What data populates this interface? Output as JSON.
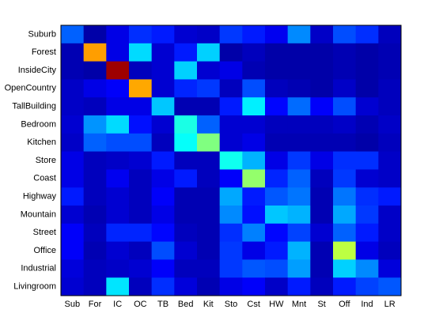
{
  "chart_data": {
    "type": "heatmap",
    "colormap": "jet",
    "clim": [
      0,
      1
    ],
    "x": [
      "Sub",
      "For",
      "IC",
      "OC",
      "TB",
      "Bed",
      "Kit",
      "Sto",
      "Cst",
      "HW",
      "Mnt",
      "St",
      "Off",
      "Ind",
      "LR"
    ],
    "y": [
      "Suburb",
      "Forest",
      "InsideCity",
      "OpenCountry",
      "TallBuilding",
      "Bedroom",
      "Kitchen",
      "Store",
      "Coast",
      "Highway",
      "Mountain",
      "Street",
      "Office",
      "Industrial",
      "Livingroom"
    ],
    "values": [
      [
        0.22,
        0.04,
        0.1,
        0.17,
        0.15,
        0.08,
        0.07,
        0.18,
        0.15,
        0.11,
        0.26,
        0.07,
        0.2,
        0.17,
        0.06
      ],
      [
        0.05,
        0.72,
        0.1,
        0.34,
        0.08,
        0.15,
        0.33,
        0.04,
        0.06,
        0.04,
        0.04,
        0.04,
        0.05,
        0.04,
        0.05
      ],
      [
        0.05,
        0.04,
        0.97,
        0.06,
        0.08,
        0.33,
        0.08,
        0.1,
        0.05,
        0.04,
        0.04,
        0.04,
        0.05,
        0.04,
        0.05
      ],
      [
        0.07,
        0.1,
        0.12,
        0.71,
        0.08,
        0.16,
        0.18,
        0.06,
        0.2,
        0.06,
        0.05,
        0.04,
        0.07,
        0.04,
        0.06
      ],
      [
        0.07,
        0.06,
        0.1,
        0.1,
        0.32,
        0.05,
        0.05,
        0.15,
        0.36,
        0.13,
        0.23,
        0.12,
        0.2,
        0.08,
        0.06
      ],
      [
        0.08,
        0.27,
        0.34,
        0.14,
        0.08,
        0.4,
        0.22,
        0.08,
        0.08,
        0.06,
        0.06,
        0.06,
        0.07,
        0.05,
        0.07
      ],
      [
        0.07,
        0.22,
        0.2,
        0.2,
        0.06,
        0.38,
        0.5,
        0.08,
        0.1,
        0.05,
        0.05,
        0.05,
        0.05,
        0.04,
        0.06
      ],
      [
        0.1,
        0.06,
        0.07,
        0.08,
        0.15,
        0.06,
        0.06,
        0.39,
        0.3,
        0.1,
        0.18,
        0.1,
        0.17,
        0.17,
        0.07
      ],
      [
        0.1,
        0.06,
        0.11,
        0.06,
        0.1,
        0.15,
        0.06,
        0.12,
        0.52,
        0.16,
        0.22,
        0.06,
        0.18,
        0.08,
        0.07
      ],
      [
        0.15,
        0.06,
        0.08,
        0.06,
        0.12,
        0.05,
        0.05,
        0.29,
        0.15,
        0.21,
        0.24,
        0.05,
        0.24,
        0.17,
        0.15
      ],
      [
        0.08,
        0.05,
        0.08,
        0.06,
        0.1,
        0.05,
        0.05,
        0.26,
        0.14,
        0.32,
        0.3,
        0.05,
        0.29,
        0.18,
        0.07
      ],
      [
        0.12,
        0.06,
        0.16,
        0.16,
        0.13,
        0.06,
        0.05,
        0.17,
        0.25,
        0.13,
        0.19,
        0.08,
        0.22,
        0.15,
        0.07
      ],
      [
        0.12,
        0.05,
        0.08,
        0.06,
        0.2,
        0.08,
        0.05,
        0.18,
        0.1,
        0.15,
        0.3,
        0.05,
        0.56,
        0.1,
        0.06
      ],
      [
        0.09,
        0.06,
        0.07,
        0.08,
        0.12,
        0.06,
        0.06,
        0.18,
        0.21,
        0.2,
        0.28,
        0.05,
        0.33,
        0.26,
        0.09
      ],
      [
        0.08,
        0.06,
        0.35,
        0.06,
        0.17,
        0.09,
        0.05,
        0.1,
        0.12,
        0.07,
        0.15,
        0.06,
        0.15,
        0.19,
        0.21
      ]
    ]
  }
}
